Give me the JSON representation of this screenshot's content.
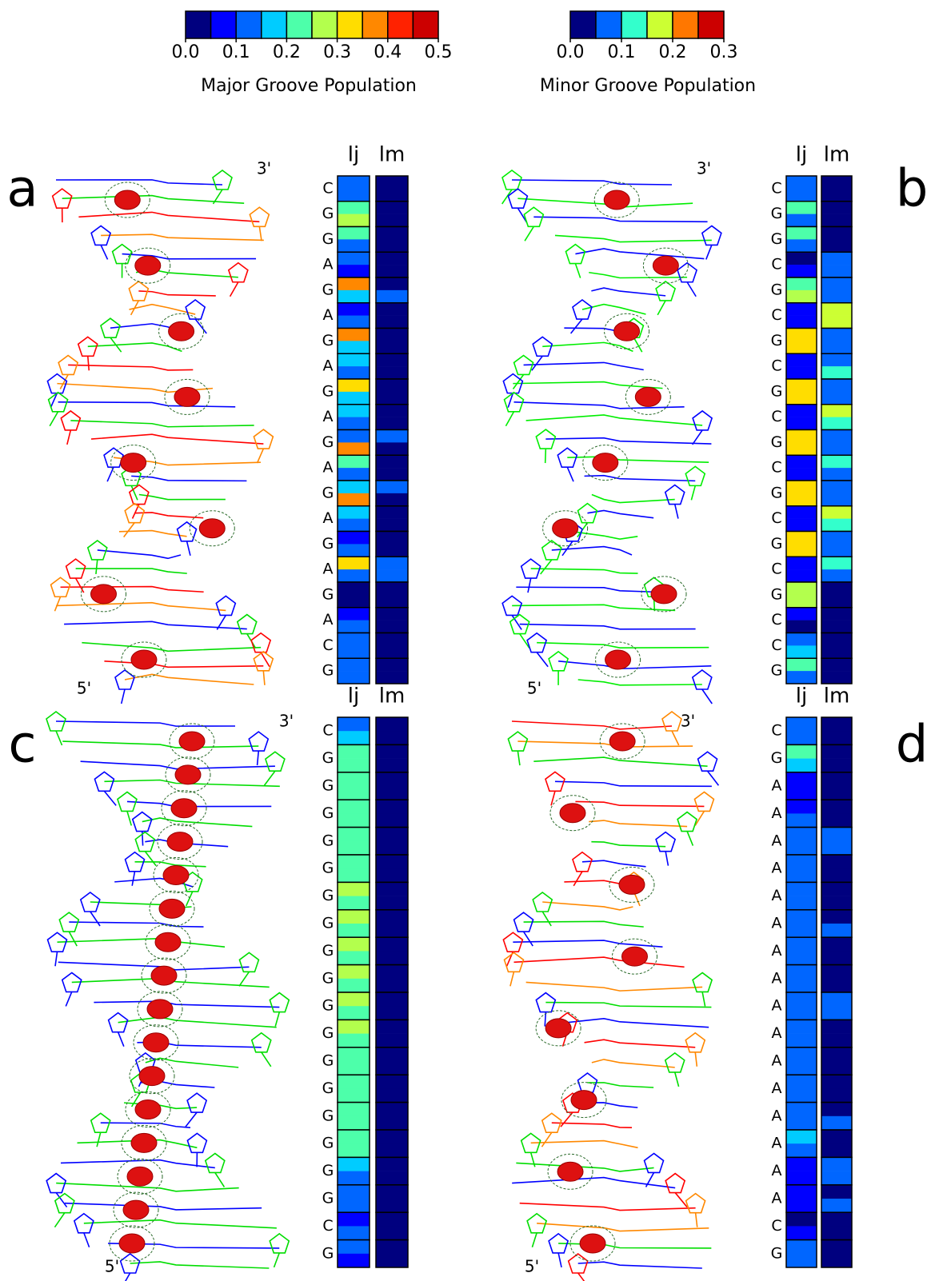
{
  "colorbars": [
    {
      "label": "Major Groove Population",
      "range": [
        0,
        0.5
      ],
      "ticks": [
        {
          "value": 0,
          "label": "0.0"
        },
        0.1,
        0.2,
        0.3,
        0.4,
        0.5
      ],
      "colors": [
        "#00007f",
        "#0000ff",
        "#0066ff",
        "#00ccff",
        "#4dffaa",
        "#b3ff4d",
        "#ffdd00",
        "#ff8800",
        "#ff2200",
        "#cc0000"
      ]
    },
    {
      "label": "Minor Groove Population",
      "range": [
        0,
        0.3
      ],
      "ticks": [
        {
          "value": 0,
          "label": "0.0"
        },
        0.1,
        0.2,
        0.3
      ],
      "colors": [
        "#00007f",
        "#0066ff",
        "#33ffcc",
        "#ccff33",
        "#ff7700",
        "#cc0000"
      ]
    }
  ],
  "panels": [
    {
      "letter": "a",
      "end_top": "3'",
      "end_bottom": "5'",
      "sequence": [
        "C",
        "G",
        "G",
        "A",
        "G",
        "A",
        "G",
        "A",
        "G",
        "A",
        "G",
        "A",
        "G",
        "A",
        "G",
        "A",
        "G",
        "A",
        "C",
        "G"
      ],
      "columns": [
        {
          "header": "lj",
          "colorbar": 0,
          "values": [
            [
              0.125,
              0.125
            ],
            [
              0.225,
              0.275
            ],
            [
              0.225,
              0.125
            ],
            [
              0.125,
              0.075
            ],
            [
              0.375,
              0.175
            ],
            [
              0.075,
              0.125
            ],
            [
              0.375,
              0.175
            ],
            [
              0.175,
              0.125
            ],
            [
              0.325,
              0.175
            ],
            [
              0.175,
              0.125
            ],
            [
              0.125,
              0.375
            ],
            [
              0.225,
              0.125
            ],
            [
              0.175,
              0.375
            ],
            [
              0.175,
              0.125
            ],
            [
              0.075,
              0.125
            ],
            [
              0.325,
              0.125
            ],
            [
              0.025,
              0.025
            ],
            [
              0.075,
              0.125
            ],
            [
              0.125,
              0.125
            ],
            [
              0.125,
              0.125
            ]
          ]
        },
        {
          "header": "lm",
          "colorbar": 1,
          "values": [
            [
              0.025,
              0.025
            ],
            [
              0.025,
              0.025
            ],
            [
              0.025,
              0.025
            ],
            [
              0.025,
              0.025
            ],
            [
              0.025,
              0.075
            ],
            [
              0.025,
              0.025
            ],
            [
              0.025,
              0.025
            ],
            [
              0.025,
              0.025
            ],
            [
              0.025,
              0.025
            ],
            [
              0.025,
              0.025
            ],
            [
              0.075,
              0.025
            ],
            [
              0.025,
              0.025
            ],
            [
              0.075,
              0.025
            ],
            [
              0.025,
              0.025
            ],
            [
              0.025,
              0.025
            ],
            [
              0.075,
              0.075
            ],
            [
              0.025,
              0.025
            ],
            [
              0.025,
              0.025
            ],
            [
              0.025,
              0.025
            ],
            [
              0.025,
              0.025
            ]
          ]
        }
      ]
    },
    {
      "letter": "b",
      "end_top": "3'",
      "end_bottom": "5'",
      "sequence": [
        "C",
        "G",
        "G",
        "C",
        "G",
        "C",
        "G",
        "C",
        "G",
        "C",
        "G",
        "C",
        "G",
        "C",
        "G",
        "C",
        "G",
        "C",
        "C",
        "G"
      ],
      "columns": [
        {
          "header": "lj",
          "colorbar": 0,
          "values": [
            [
              0.125,
              0.125
            ],
            [
              0.225,
              0.125
            ],
            [
              0.225,
              0.125
            ],
            [
              0.025,
              0.075
            ],
            [
              0.225,
              0.275
            ],
            [
              0.075,
              0.075
            ],
            [
              0.325,
              0.325
            ],
            [
              0.075,
              0.075
            ],
            [
              0.325,
              0.325
            ],
            [
              0.075,
              0.075
            ],
            [
              0.325,
              0.325
            ],
            [
              0.075,
              0.075
            ],
            [
              0.325,
              0.325
            ],
            [
              0.075,
              0.075
            ],
            [
              0.325,
              0.325
            ],
            [
              0.075,
              0.075
            ],
            [
              0.275,
              0.275
            ],
            [
              0.075,
              0.025
            ],
            [
              0.125,
              0.175
            ],
            [
              0.225,
              0.125
            ]
          ]
        },
        {
          "header": "lm",
          "colorbar": 1,
          "values": [
            [
              0.025,
              0.025
            ],
            [
              0.025,
              0.025
            ],
            [
              0.025,
              0.025
            ],
            [
              0.075,
              0.075
            ],
            [
              0.075,
              0.075
            ],
            [
              0.175,
              0.175
            ],
            [
              0.075,
              0.075
            ],
            [
              0.075,
              0.125
            ],
            [
              0.075,
              0.075
            ],
            [
              0.175,
              0.125
            ],
            [
              0.075,
              0.075
            ],
            [
              0.125,
              0.075
            ],
            [
              0.075,
              0.075
            ],
            [
              0.175,
              0.125
            ],
            [
              0.075,
              0.075
            ],
            [
              0.125,
              0.075
            ],
            [
              0.025,
              0.025
            ],
            [
              0.025,
              0.025
            ],
            [
              0.025,
              0.025
            ],
            [
              0.025,
              0.025
            ]
          ]
        }
      ]
    },
    {
      "letter": "c",
      "end_top": "3'",
      "end_bottom": "5'",
      "sequence": [
        "C",
        "G",
        "G",
        "G",
        "G",
        "G",
        "G",
        "G",
        "G",
        "G",
        "G",
        "G",
        "G",
        "G",
        "G",
        "G",
        "G",
        "G",
        "C",
        "G"
      ],
      "columns": [
        {
          "header": "lj",
          "colorbar": 0,
          "values": [
            [
              0.125,
              0.175
            ],
            [
              0.225,
              0.225
            ],
            [
              0.225,
              0.225
            ],
            [
              0.225,
              0.225
            ],
            [
              0.225,
              0.225
            ],
            [
              0.225,
              0.225
            ],
            [
              0.275,
              0.225
            ],
            [
              0.275,
              0.225
            ],
            [
              0.275,
              0.225
            ],
            [
              0.275,
              0.225
            ],
            [
              0.275,
              0.225
            ],
            [
              0.275,
              0.225
            ],
            [
              0.225,
              0.225
            ],
            [
              0.225,
              0.225
            ],
            [
              0.225,
              0.225
            ],
            [
              0.225,
              0.225
            ],
            [
              0.175,
              0.125
            ],
            [
              0.125,
              0.125
            ],
            [
              0.075,
              0.125
            ],
            [
              0.125,
              0.075
            ]
          ]
        },
        {
          "header": "lm",
          "colorbar": 1,
          "values": [
            [
              0.025,
              0.025
            ],
            [
              0.025,
              0.025
            ],
            [
              0.025,
              0.025
            ],
            [
              0.025,
              0.025
            ],
            [
              0.025,
              0.025
            ],
            [
              0.025,
              0.025
            ],
            [
              0.025,
              0.025
            ],
            [
              0.025,
              0.025
            ],
            [
              0.025,
              0.025
            ],
            [
              0.025,
              0.025
            ],
            [
              0.025,
              0.025
            ],
            [
              0.025,
              0.025
            ],
            [
              0.025,
              0.025
            ],
            [
              0.025,
              0.025
            ],
            [
              0.025,
              0.025
            ],
            [
              0.025,
              0.025
            ],
            [
              0.025,
              0.025
            ],
            [
              0.025,
              0.025
            ],
            [
              0.025,
              0.025
            ],
            [
              0.025,
              0.025
            ]
          ]
        }
      ]
    },
    {
      "letter": "d",
      "end_top": "3'",
      "end_bottom": "5'",
      "sequence": [
        "C",
        "G",
        "A",
        "A",
        "A",
        "A",
        "A",
        "A",
        "A",
        "A",
        "A",
        "A",
        "A",
        "A",
        "A",
        "A",
        "A",
        "A",
        "C",
        "G"
      ],
      "columns": [
        {
          "header": "lj",
          "colorbar": 0,
          "values": [
            [
              0.125,
              0.125
            ],
            [
              0.225,
              0.175
            ],
            [
              0.075,
              0.075
            ],
            [
              0.075,
              0.125
            ],
            [
              0.125,
              0.125
            ],
            [
              0.125,
              0.125
            ],
            [
              0.125,
              0.125
            ],
            [
              0.125,
              0.125
            ],
            [
              0.125,
              0.125
            ],
            [
              0.125,
              0.125
            ],
            [
              0.125,
              0.125
            ],
            [
              0.125,
              0.125
            ],
            [
              0.125,
              0.125
            ],
            [
              0.125,
              0.125
            ],
            [
              0.125,
              0.125
            ],
            [
              0.175,
              0.125
            ],
            [
              0.075,
              0.075
            ],
            [
              0.075,
              0.075
            ],
            [
              0.025,
              0.075
            ],
            [
              0.125,
              0.125
            ]
          ]
        },
        {
          "header": "lm",
          "colorbar": 1,
          "values": [
            [
              0.025,
              0.025
            ],
            [
              0.025,
              0.025
            ],
            [
              0.025,
              0.025
            ],
            [
              0.025,
              0.025
            ],
            [
              0.075,
              0.075
            ],
            [
              0.025,
              0.025
            ],
            [
              0.025,
              0.025
            ],
            [
              0.025,
              0.075
            ],
            [
              0.025,
              0.025
            ],
            [
              0.025,
              0.025
            ],
            [
              0.075,
              0.075
            ],
            [
              0.025,
              0.025
            ],
            [
              0.025,
              0.025
            ],
            [
              0.025,
              0.025
            ],
            [
              0.025,
              0.075
            ],
            [
              0.025,
              0.025
            ],
            [
              0.075,
              0.075
            ],
            [
              0.025,
              0.075
            ],
            [
              0.025,
              0.025
            ],
            [
              0.025,
              0.025
            ]
          ]
        }
      ]
    }
  ]
}
